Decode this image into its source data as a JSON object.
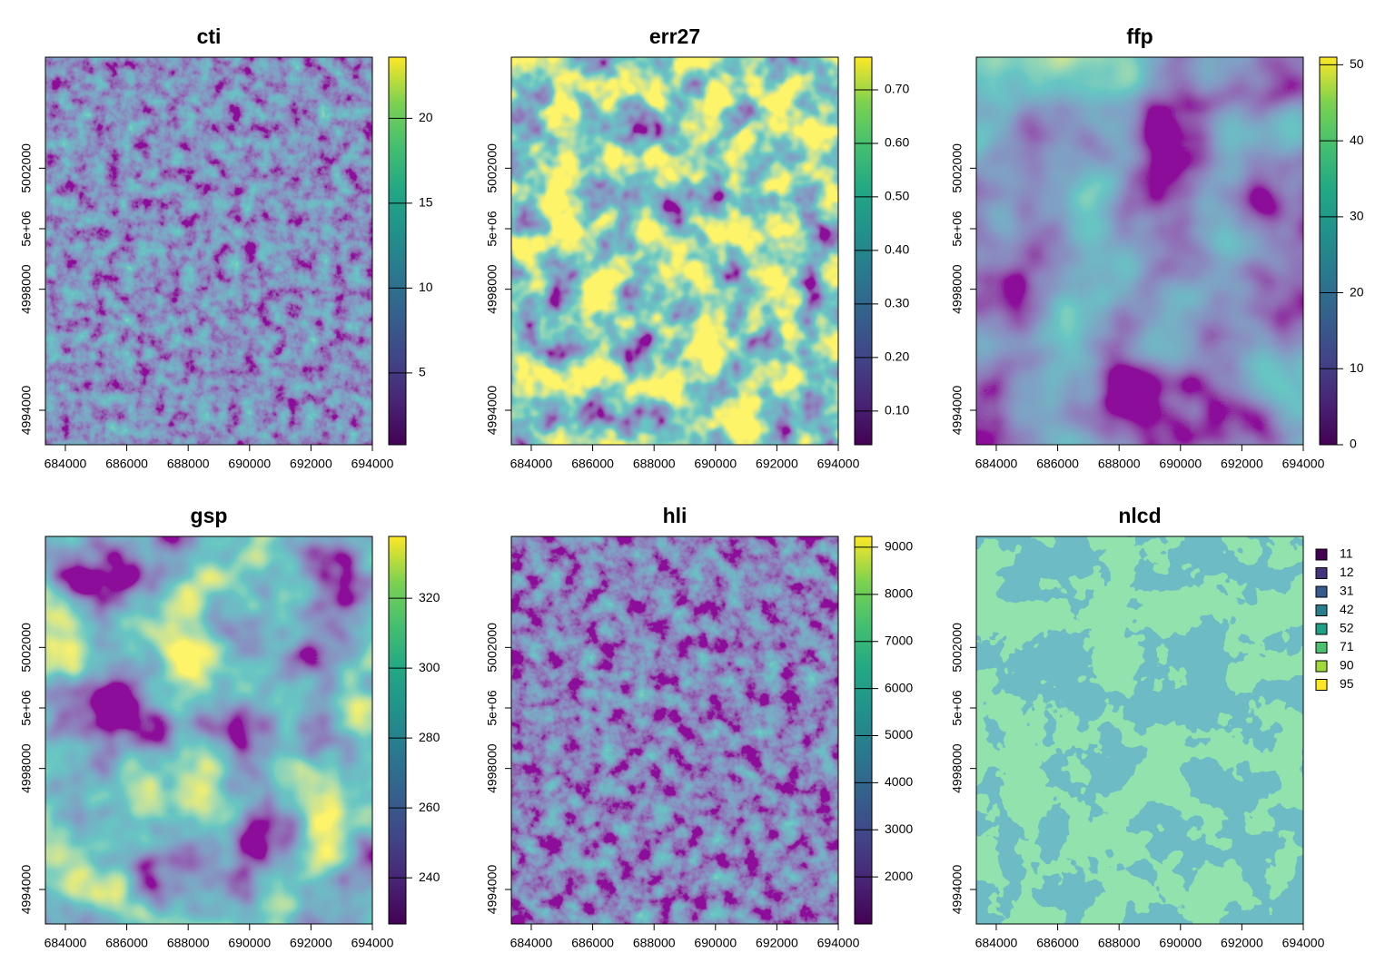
{
  "chart_data": [
    {
      "type": "raster",
      "title": "cti",
      "xlim": [
        683350,
        694000
      ],
      "xticks": [
        684000,
        686000,
        688000,
        690000,
        692000,
        694000
      ],
      "ylim": [
        4992860,
        5005670
      ],
      "yticks": [
        4994000,
        4998000,
        {
          "value": 5000000,
          "label": "5e+06"
        },
        5002000
      ],
      "zlim": [
        0.77,
        23.6
      ],
      "zticks": [
        5,
        10,
        15,
        20
      ]
    },
    {
      "type": "raster",
      "title": "err27",
      "xlim": [
        683350,
        694000
      ],
      "xticks": [
        684000,
        686000,
        688000,
        690000,
        692000,
        694000
      ],
      "ylim": [
        4992860,
        5005670
      ],
      "yticks": [
        4994000,
        4998000,
        {
          "value": 5000000,
          "label": "5e+06"
        },
        5002000
      ],
      "zlim": [
        0.037,
        0.761
      ],
      "zticks": [
        {
          "value": 0.1,
          "label": "0.10"
        },
        {
          "value": 0.2,
          "label": "0.20"
        },
        {
          "value": 0.3,
          "label": "0.30"
        },
        {
          "value": 0.4,
          "label": "0.40"
        },
        {
          "value": 0.5,
          "label": "0.50"
        },
        {
          "value": 0.6,
          "label": "0.60"
        },
        {
          "value": 0.7,
          "label": "0.70"
        }
      ]
    },
    {
      "type": "raster",
      "title": "ffp",
      "xlim": [
        683350,
        694000
      ],
      "xticks": [
        684000,
        686000,
        688000,
        690000,
        692000,
        694000
      ],
      "ylim": [
        4992860,
        5005670
      ],
      "yticks": [
        4994000,
        4998000,
        {
          "value": 5000000,
          "label": "5e+06"
        },
        5002000
      ],
      "zlim": [
        0,
        51
      ],
      "zticks": [
        0,
        10,
        20,
        30,
        40,
        50
      ]
    },
    {
      "type": "raster",
      "title": "gsp",
      "xlim": [
        683350,
        694000
      ],
      "xticks": [
        684000,
        686000,
        688000,
        690000,
        692000,
        694000
      ],
      "ylim": [
        4992860,
        5005670
      ],
      "yticks": [
        4994000,
        4998000,
        {
          "value": 5000000,
          "label": "5e+06"
        },
        5002000
      ],
      "zlim": [
        226.8,
        337.7
      ],
      "zticks": [
        240,
        260,
        280,
        300,
        320
      ]
    },
    {
      "type": "raster",
      "title": "hli",
      "xlim": [
        683350,
        694000
      ],
      "xticks": [
        684000,
        686000,
        688000,
        690000,
        692000,
        694000
      ],
      "ylim": [
        4992860,
        5005670
      ],
      "yticks": [
        4994000,
        4998000,
        {
          "value": 5000000,
          "label": "5e+06"
        },
        5002000
      ],
      "zlim": [
        1000,
        9230
      ],
      "zticks": [
        2000,
        3000,
        4000,
        5000,
        6000,
        7000,
        8000,
        9000
      ]
    },
    {
      "type": "categorical-raster",
      "title": "nlcd",
      "xlim": [
        683350,
        694000
      ],
      "xticks": [
        684000,
        686000,
        688000,
        690000,
        692000,
        694000
      ],
      "ylim": [
        4992860,
        5005670
      ],
      "yticks": [
        4994000,
        4998000,
        {
          "value": 5000000,
          "label": "5e+06"
        },
        5002000
      ],
      "categories": [
        "11",
        "12",
        "31",
        "42",
        "52",
        "71",
        "90",
        "95"
      ],
      "colors": [
        "#440154",
        "#46337e",
        "#365c8d",
        "#277f8e",
        "#1fa187",
        "#4ac16d",
        "#9fda3a",
        "#fde725"
      ]
    }
  ]
}
